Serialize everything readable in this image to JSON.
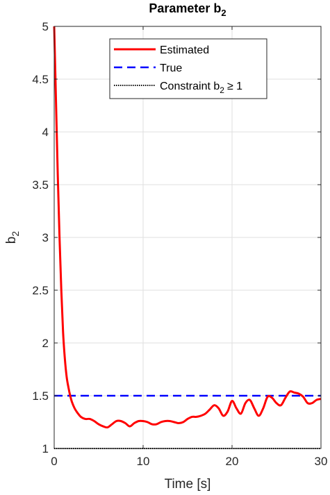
{
  "chart_data": {
    "type": "line",
    "title": "Parameter b",
    "title_sub": "2",
    "xlabel": "Time [s]",
    "ylabel": "b",
    "ylabel_sub": "2",
    "xlim": [
      0,
      30
    ],
    "ylim": [
      1,
      5
    ],
    "xticks": [
      0,
      10,
      20,
      30
    ],
    "yticks": [
      1,
      1.5,
      2,
      2.5,
      3,
      3.5,
      4,
      4.5,
      5
    ],
    "ytick_labels": [
      "1",
      "1.5",
      "2",
      "2.5",
      "3",
      "3.5",
      "4",
      "4.5",
      "5"
    ],
    "grid": true,
    "legend_position": "top",
    "series": [
      {
        "name": "Estimated",
        "style": "solid",
        "color": "#ff0000",
        "x": [
          0,
          0.2,
          0.4,
          0.6,
          0.8,
          1.0,
          1.2,
          1.4,
          1.6,
          1.8,
          2.0,
          2.3,
          2.6,
          3.0,
          3.5,
          4.0,
          4.5,
          5.0,
          5.5,
          6.0,
          6.5,
          7.0,
          7.5,
          8.0,
          8.5,
          9.0,
          9.5,
          10.0,
          10.5,
          11.0,
          11.5,
          12.0,
          12.5,
          13.0,
          13.5,
          14.0,
          14.5,
          15.0,
          15.5,
          16.0,
          16.5,
          17.0,
          17.5,
          18.0,
          18.5,
          19.0,
          19.5,
          20.0,
          20.5,
          21.0,
          21.5,
          22.0,
          22.5,
          23.0,
          23.5,
          24.0,
          24.5,
          25.0,
          25.5,
          26.0,
          26.5,
          27.0,
          27.5,
          28.0,
          28.5,
          29.0,
          29.5,
          30.0
        ],
        "y": [
          5.0,
          4.3,
          3.6,
          3.0,
          2.5,
          2.1,
          1.85,
          1.68,
          1.58,
          1.5,
          1.44,
          1.38,
          1.34,
          1.3,
          1.28,
          1.28,
          1.26,
          1.23,
          1.21,
          1.2,
          1.23,
          1.26,
          1.26,
          1.24,
          1.21,
          1.24,
          1.26,
          1.26,
          1.25,
          1.23,
          1.23,
          1.25,
          1.26,
          1.26,
          1.25,
          1.24,
          1.25,
          1.28,
          1.3,
          1.3,
          1.31,
          1.33,
          1.37,
          1.41,
          1.38,
          1.31,
          1.35,
          1.45,
          1.38,
          1.33,
          1.43,
          1.46,
          1.38,
          1.31,
          1.38,
          1.49,
          1.48,
          1.43,
          1.41,
          1.48,
          1.54,
          1.53,
          1.52,
          1.49,
          1.43,
          1.43,
          1.46,
          1.47
        ]
      },
      {
        "name": "True",
        "style": "dashed",
        "color": "#0000ff",
        "x": [
          0,
          30
        ],
        "y": [
          1.5,
          1.5
        ]
      },
      {
        "name": "Constraint b",
        "name_sub": "2",
        "name_suffix": "≥ 1",
        "style": "dotted",
        "color": "#000000",
        "x": [
          0,
          30
        ],
        "y": [
          1,
          1
        ]
      }
    ]
  }
}
